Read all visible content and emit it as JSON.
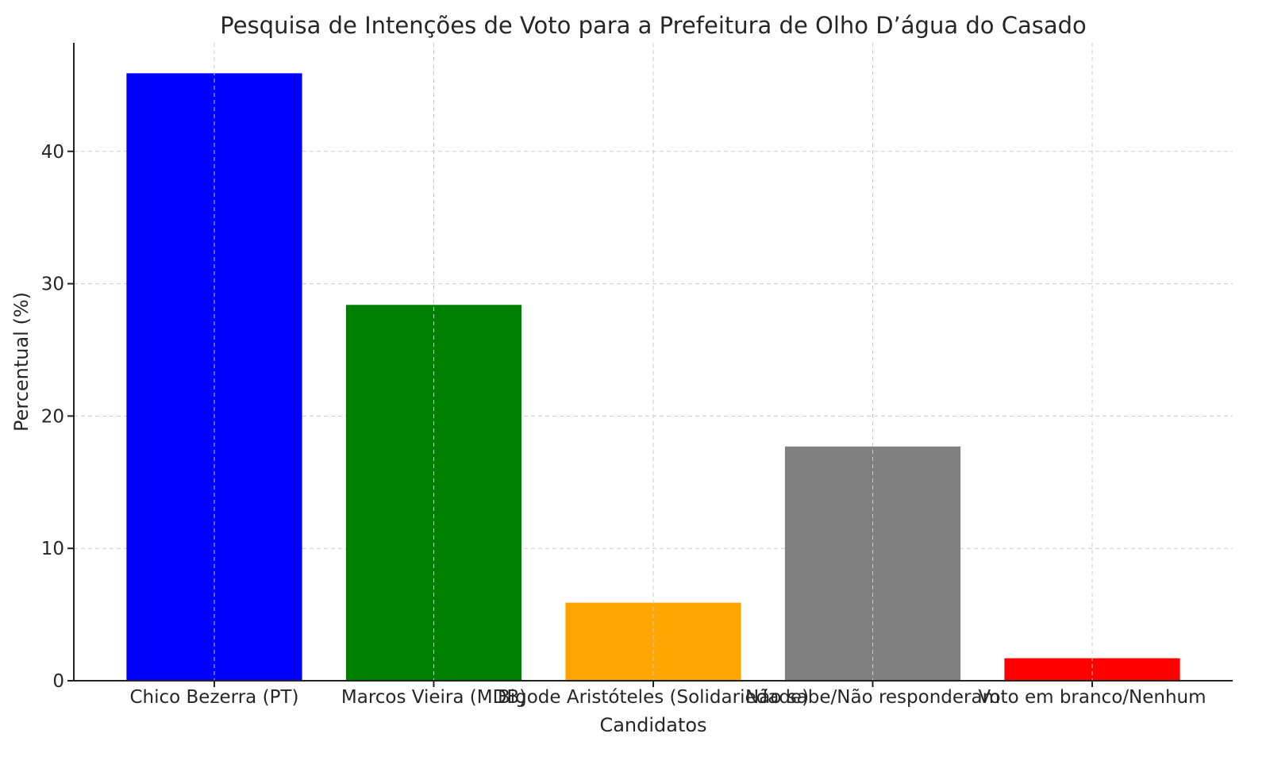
{
  "chart_data": {
    "type": "bar",
    "title": "Pesquisa de Intenções de Voto para a Prefeitura de Olho D’água do Casado",
    "xlabel": "Candidatos",
    "ylabel": "Percentual (%)",
    "categories": [
      "Chico Bezerra (PT)",
      "Marcos Vieira (MDB)",
      "Bigode Aristóteles (Solidariedade)",
      "Não sabe/Não responderam",
      "Voto em branco/Nenhum"
    ],
    "values": [
      45.9,
      28.4,
      5.9,
      17.7,
      1.7
    ],
    "colors": [
      "#0000ff",
      "#008000",
      "#ffa500",
      "#808080",
      "#ff0000"
    ],
    "ylim": [
      0,
      48.2
    ],
    "yticks": [
      "0",
      "10",
      "20",
      "30",
      "40"
    ],
    "grid": true
  }
}
